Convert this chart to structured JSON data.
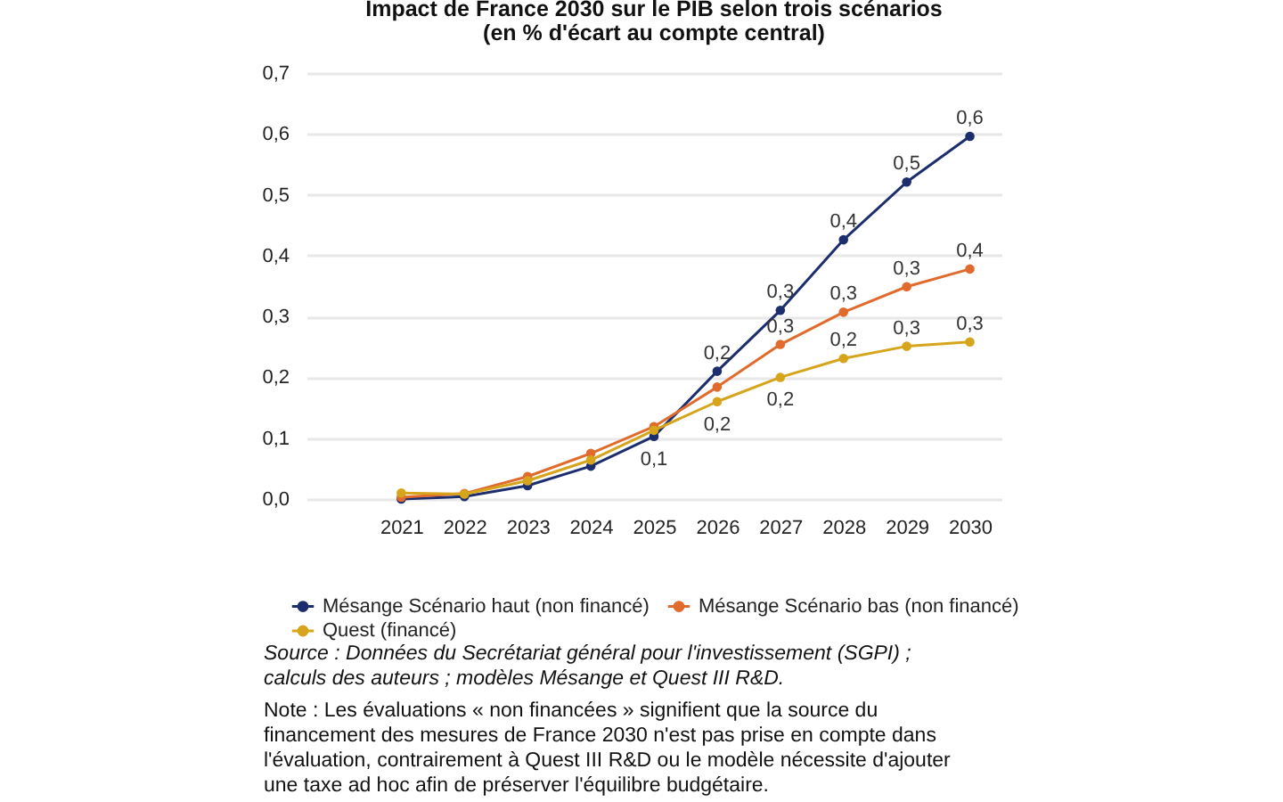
{
  "chart_data": {
    "type": "line",
    "title": "Impact de France 2030 sur le PIB selon trois scénarios",
    "subtitle": "(en % d'écart au compte central)",
    "categories": [
      "2021",
      "2022",
      "2023",
      "2024",
      "2025",
      "2026",
      "2027",
      "2028",
      "2029",
      "2030"
    ],
    "series": [
      {
        "name": "Mésange Scénario haut (non financé)",
        "color": "#1c2e6e",
        "values": [
          0.0,
          0.004,
          0.022,
          0.054,
          0.103,
          0.21,
          0.31,
          0.426,
          0.521,
          0.596
        ],
        "value_labels": [
          null,
          null,
          null,
          null,
          "0,1",
          "0,2",
          "0,3",
          "0,4",
          "0,5",
          "0,6"
        ]
      },
      {
        "name": "Mésange Scénario bas (non financé)",
        "color": "#e06b2c",
        "values": [
          0.003,
          0.009,
          0.037,
          0.075,
          0.119,
          0.184,
          0.254,
          0.307,
          0.349,
          0.378
        ],
        "value_labels": [
          null,
          null,
          null,
          null,
          null,
          null,
          "0,3",
          "0,3",
          "0,3",
          "0,4"
        ]
      },
      {
        "name": "Quest (financé)",
        "color": "#d6a51c",
        "values": [
          0.01,
          0.008,
          0.03,
          0.064,
          0.113,
          0.16,
          0.2,
          0.231,
          0.251,
          0.258
        ],
        "value_labels": [
          null,
          null,
          null,
          null,
          null,
          "0,2",
          "0,2",
          "0,2",
          "0,3",
          "0,3"
        ]
      }
    ],
    "ylim": [
      0,
      0.7
    ],
    "yticks": [
      {
        "value": 0,
        "label": "0,0"
      },
      {
        "value": 0.1,
        "label": "0,1"
      },
      {
        "value": 0.2,
        "label": "0,2"
      },
      {
        "value": 0.3,
        "label": "0,3"
      },
      {
        "value": 0.4,
        "label": "0,4"
      },
      {
        "value": 0.5,
        "label": "0,5"
      },
      {
        "value": 0.6,
        "label": "0,6"
      },
      {
        "value": 0.7,
        "label": "0,7"
      }
    ],
    "grid": "y",
    "legend": "bottom",
    "marker": "circle",
    "line_style": "solid",
    "annotations": [
      "Source : Données du Secrétariat général pour l'investissement (SGPI) ; calculs des auteurs ; modèles Mésange et Quest III R&D.",
      "Note : Les évaluations « non financées » signifient que la source du financement des mesures de France 2030 n'est pas prise en compte dans l'évaluation, contrairement à Quest III R&D ou le modèle nécessite d'ajouter une taxe ad hoc afin de préserver l'équilibre budgétaire."
    ]
  }
}
